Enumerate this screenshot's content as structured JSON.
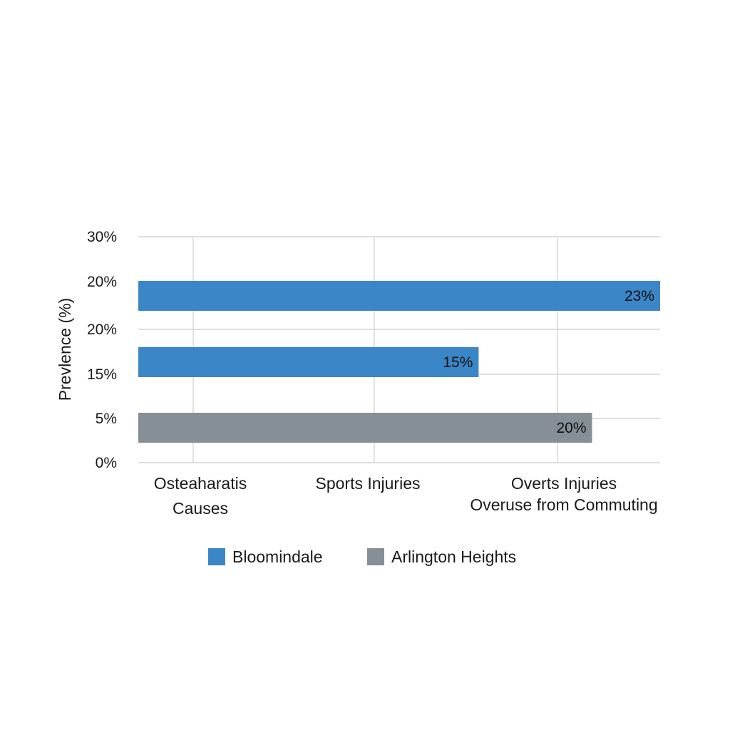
{
  "chart_data": {
    "type": "bar",
    "orientation": "horizontal",
    "ylabel": "Prevlence (%)",
    "y_tick_labels": [
      "30%",
      "20%",
      "20%",
      "15%",
      "5%",
      "0%"
    ],
    "categories": [
      [
        "Osteaharatis",
        "Causes"
      ],
      [
        "Sports Injuries"
      ],
      [
        "Overts Injuries",
        "Overuse from Commuting"
      ]
    ],
    "series": [
      {
        "name": "Bloomindale",
        "color": "#3a86c6"
      },
      {
        "name": "Arlington Heights",
        "color": "#868e96"
      }
    ],
    "bars": [
      {
        "series": 0,
        "value": 23,
        "label": "23%"
      },
      {
        "series": 0,
        "value": 15,
        "label": "15%"
      },
      {
        "series": 1,
        "value": 20,
        "label": "20%"
      }
    ],
    "legend_position": "bottom",
    "grid": true
  }
}
